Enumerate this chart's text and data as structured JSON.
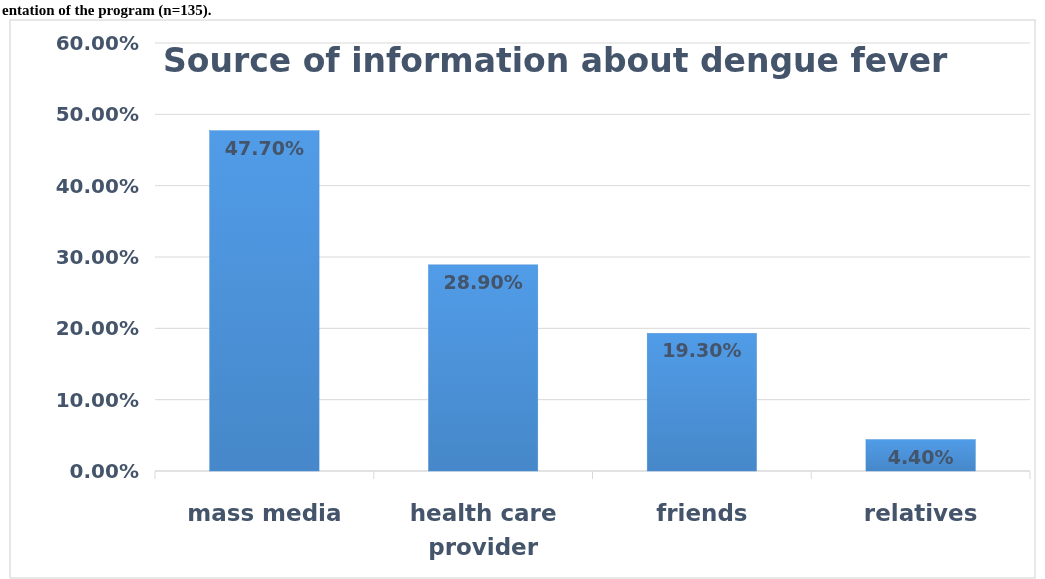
{
  "chart_data": {
    "type": "bar",
    "title": "Source of information about dengue fever",
    "annotations": [
      "entation of the program (n=135)."
    ],
    "categories": [
      "mass media",
      "health care provider",
      "friends",
      "relatives"
    ],
    "values": [
      47.7,
      28.9,
      19.3,
      4.4
    ],
    "value_labels": [
      "47.70%",
      "28.90%",
      "19.30%",
      "4.40%"
    ],
    "color": "#4a8fd4",
    "ylim": [
      0,
      60
    ],
    "yticks": [
      {
        "value": 0,
        "label": "0.00%"
      },
      {
        "value": 10,
        "label": "10.00%"
      },
      {
        "value": 20,
        "label": "20.00%"
      },
      {
        "value": 30,
        "label": "30.00%"
      },
      {
        "value": 40,
        "label": "40.00%"
      },
      {
        "value": 50,
        "label": "50.00%"
      },
      {
        "value": 60,
        "label": "60.00%"
      }
    ],
    "grid": "y"
  }
}
